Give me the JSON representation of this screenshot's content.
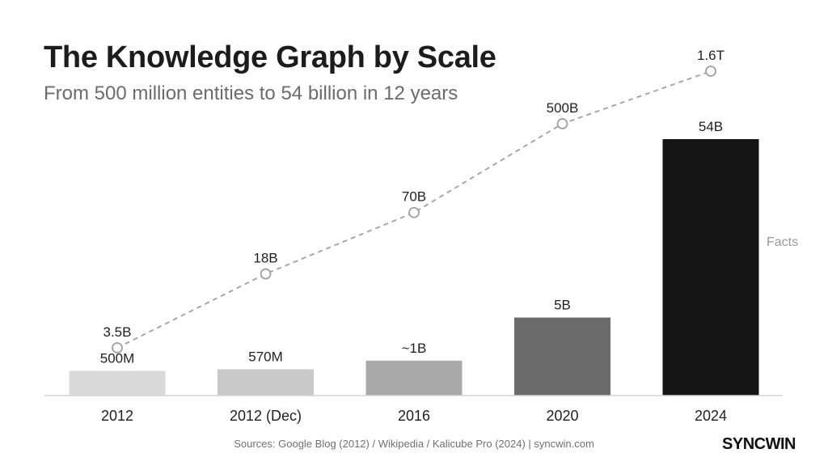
{
  "title": "The Knowledge Graph by Scale",
  "subtitle": "From 500 million entities to 54 billion in 12 years",
  "source": "Sources: Google Blog (2012) / Wikipedia / Kalicube Pro (2024) | syncwin.com",
  "logo": "SYNCWIN",
  "chart_data": {
    "type": "bar",
    "categories": [
      "2012",
      "2012 (Dec)",
      "2016",
      "2020",
      "2024"
    ],
    "series": [
      {
        "kind": "bar",
        "values": [
          0.5,
          0.57,
          1,
          5,
          54
        ],
        "value_labels": [
          "500M",
          "570M",
          "~1B",
          "5B",
          "54B"
        ],
        "colors": [
          "#dadada",
          "#c9c9c9",
          "#a8a8a8",
          "#6b6b6b",
          "#141414"
        ]
      },
      {
        "name": "Facts",
        "kind": "line",
        "style": "dashed",
        "values": [
          3.5,
          18,
          70,
          500,
          1600
        ],
        "value_labels": [
          "3.5B",
          "18B",
          "70B",
          "500B",
          "1.6T"
        ],
        "color": "#a0a0a0"
      }
    ],
    "legend": "Facts",
    "legend_position": "right",
    "grid": false
  }
}
